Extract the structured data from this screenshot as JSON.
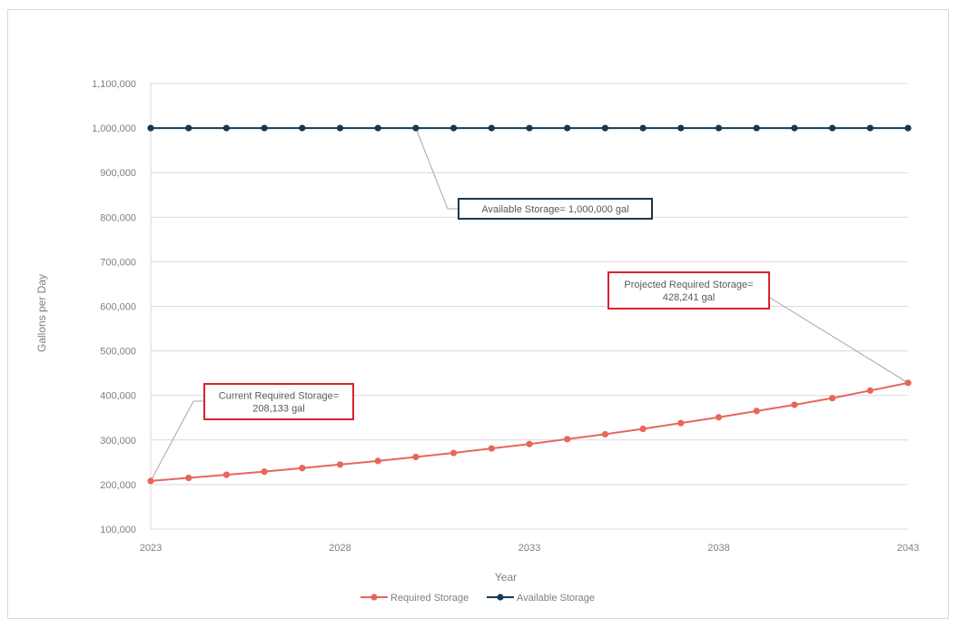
{
  "page": {
    "title": ""
  },
  "chart_data": {
    "type": "line",
    "title": "",
    "xlabel": "Year",
    "ylabel": "Gallons per Day",
    "ylim": [
      100000,
      1100000
    ],
    "yticks": [
      "100,000",
      "200,000",
      "300,000",
      "400,000",
      "500,000",
      "600,000",
      "700,000",
      "800,000",
      "900,000",
      "1,000,000",
      "1,100,000"
    ],
    "ytick_values": [
      100000,
      200000,
      300000,
      400000,
      500000,
      600000,
      700000,
      800000,
      900000,
      1000000,
      1100000
    ],
    "xlim": [
      2023,
      2043
    ],
    "xticks": [
      "2023",
      "2028",
      "2033",
      "2038",
      "2043"
    ],
    "xtick_values": [
      2023,
      2028,
      2033,
      2038,
      2043
    ],
    "grid": true,
    "legend_position": "bottom",
    "x": [
      2023,
      2024,
      2025,
      2026,
      2027,
      2028,
      2029,
      2030,
      2031,
      2032,
      2033,
      2034,
      2035,
      2036,
      2037,
      2038,
      2039,
      2040,
      2041,
      2042,
      2043
    ],
    "series": [
      {
        "name": "Required Storage",
        "color": "#e8665a",
        "values": [
          208133,
          215000,
          222000,
          229000,
          237000,
          245000,
          253000,
          262000,
          271000,
          281000,
          291000,
          302000,
          313000,
          325000,
          338000,
          351000,
          365000,
          379000,
          394000,
          411000,
          428241
        ]
      },
      {
        "name": "Available Storage",
        "color": "#17384f",
        "values": [
          1000000,
          1000000,
          1000000,
          1000000,
          1000000,
          1000000,
          1000000,
          1000000,
          1000000,
          1000000,
          1000000,
          1000000,
          1000000,
          1000000,
          1000000,
          1000000,
          1000000,
          1000000,
          1000000,
          1000000,
          1000000
        ]
      }
    ],
    "annotations": [
      {
        "lines": [
          "Available Storage= 1,000,000  gal"
        ],
        "border_color": "#17384f",
        "anchor": [
          2030,
          1000000
        ]
      },
      {
        "lines": [
          "Projected Required Storage=",
          "428,241  gal"
        ],
        "border_color": "#d9232d",
        "anchor": [
          2043,
          428241
        ]
      },
      {
        "lines": [
          "Current Required Storage=",
          "208,133  gal"
        ],
        "border_color": "#d9232d",
        "anchor": [
          2023,
          208133
        ]
      }
    ]
  }
}
